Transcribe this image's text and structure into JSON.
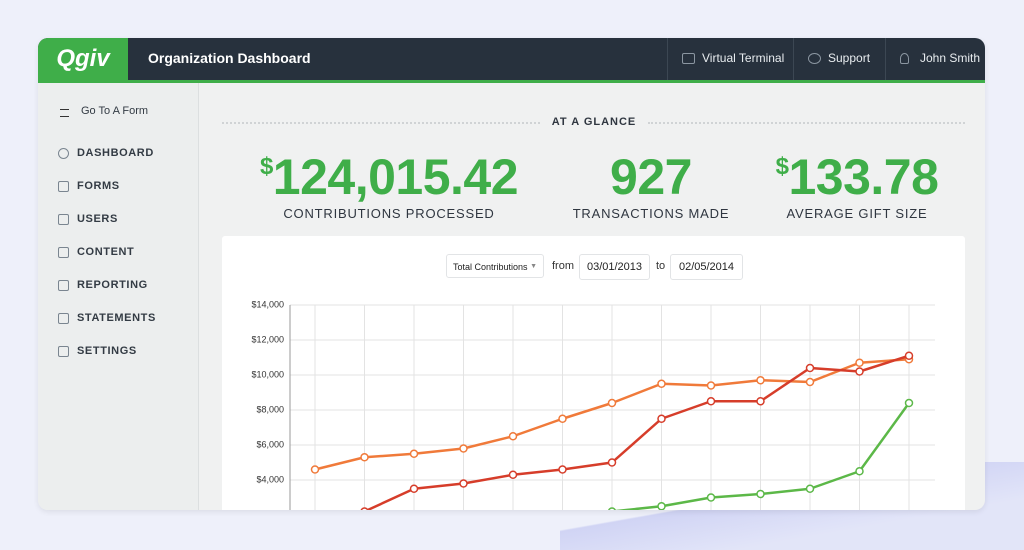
{
  "header": {
    "logo": "Qgiv",
    "title": "Organization Dashboard",
    "nav": [
      "Virtual Terminal",
      "Support",
      "John Smith"
    ]
  },
  "sidebar": {
    "top_link": "Go To A Form",
    "items": [
      "DASHBOARD",
      "FORMS",
      "USERS",
      "CONTENT",
      "REPORTING",
      "STATEMENTS",
      "SETTINGS"
    ]
  },
  "section_title": "AT A GLANCE",
  "stats": [
    {
      "prefix": "$",
      "amount": "124,015.42",
      "label": "CONTRIBUTIONS PROCESSED"
    },
    {
      "amount": "927",
      "label": "TRANSACTIONS MADE"
    },
    {
      "prefix": "$",
      "amount": "133.78",
      "label": "AVERAGE GIFT SIZE"
    }
  ],
  "controls": {
    "metric": "Total Contributions",
    "from_label": "from",
    "from_date": "03/01/2013",
    "to_label": "to",
    "to_date": "02/05/2014"
  },
  "chart_data": {
    "type": "line",
    "categories": [
      null,
      null,
      null,
      null,
      null,
      null,
      null,
      null,
      null,
      null,
      null,
      null,
      null
    ],
    "series": [
      {
        "color": "#f07a3a",
        "values": [
          4600,
          5300,
          5500,
          5800,
          6500,
          7500,
          8400,
          9500,
          9400,
          9700,
          9600,
          10700,
          10900
        ]
      },
      {
        "color": "#d63d2a",
        "values": [
          null,
          2200,
          3500,
          3800,
          4300,
          4600,
          5000,
          7500,
          8500,
          8500,
          10400,
          10200,
          11100
        ]
      },
      {
        "color": "#5cb848",
        "values": [
          null,
          null,
          null,
          null,
          null,
          null,
          2200,
          2500,
          3000,
          3200,
          3500,
          4500,
          8400
        ]
      }
    ],
    "ylim": [
      2000,
      14000
    ],
    "yticks": [
      {
        "value": 4000,
        "label": "$4,000"
      },
      {
        "value": 6000,
        "label": "$6,000"
      },
      {
        "value": 8000,
        "label": "$8,000"
      },
      {
        "value": 10000,
        "label": "$10,000"
      },
      {
        "value": 12000,
        "label": "$12,000"
      },
      {
        "value": 14000,
        "label": "$14,000"
      }
    ],
    "grid": true
  }
}
